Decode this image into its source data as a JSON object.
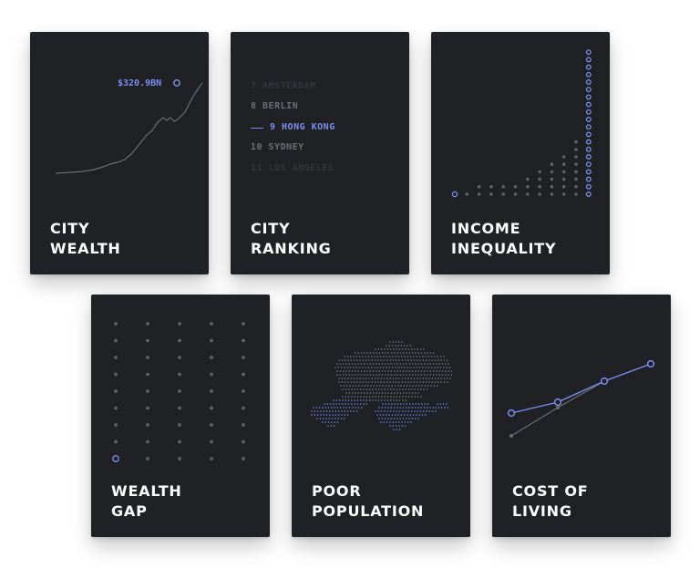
{
  "colors": {
    "card_bg": "#1f2125",
    "accent": "#7b8ef0",
    "dot": "#5f6166",
    "line": "#6a6d73"
  },
  "cards": {
    "city_wealth": {
      "title_line1": "CITY",
      "title_line2": "WEALTH",
      "value_label": "$320.9BN"
    },
    "city_ranking": {
      "title_line1": "CITY",
      "title_line2": "RANKING",
      "ranks": [
        {
          "text": "7 AMSTERDAM",
          "state": "faded"
        },
        {
          "text": "8 BERLIN",
          "state": "dim"
        },
        {
          "text": "9 HONG KONG",
          "state": "active"
        },
        {
          "text": "10 SYDNEY",
          "state": "dim"
        },
        {
          "text": "11 LOS ANGELES",
          "state": "faded"
        }
      ]
    },
    "income_inequality": {
      "title_line1": "INCOME",
      "title_line2": "INEQUALITY",
      "column_heights": [
        1,
        1,
        2,
        2,
        2,
        2,
        3,
        4,
        5,
        6,
        8,
        20
      ]
    },
    "wealth_gap": {
      "title_line1": "WEALTH",
      "title_line2": "GAP"
    },
    "poor_population": {
      "title_line1": "POOR",
      "title_line2": "POPULATION"
    },
    "cost_of_living": {
      "title_line1": "COST OF",
      "title_line2": "LIVING"
    }
  }
}
